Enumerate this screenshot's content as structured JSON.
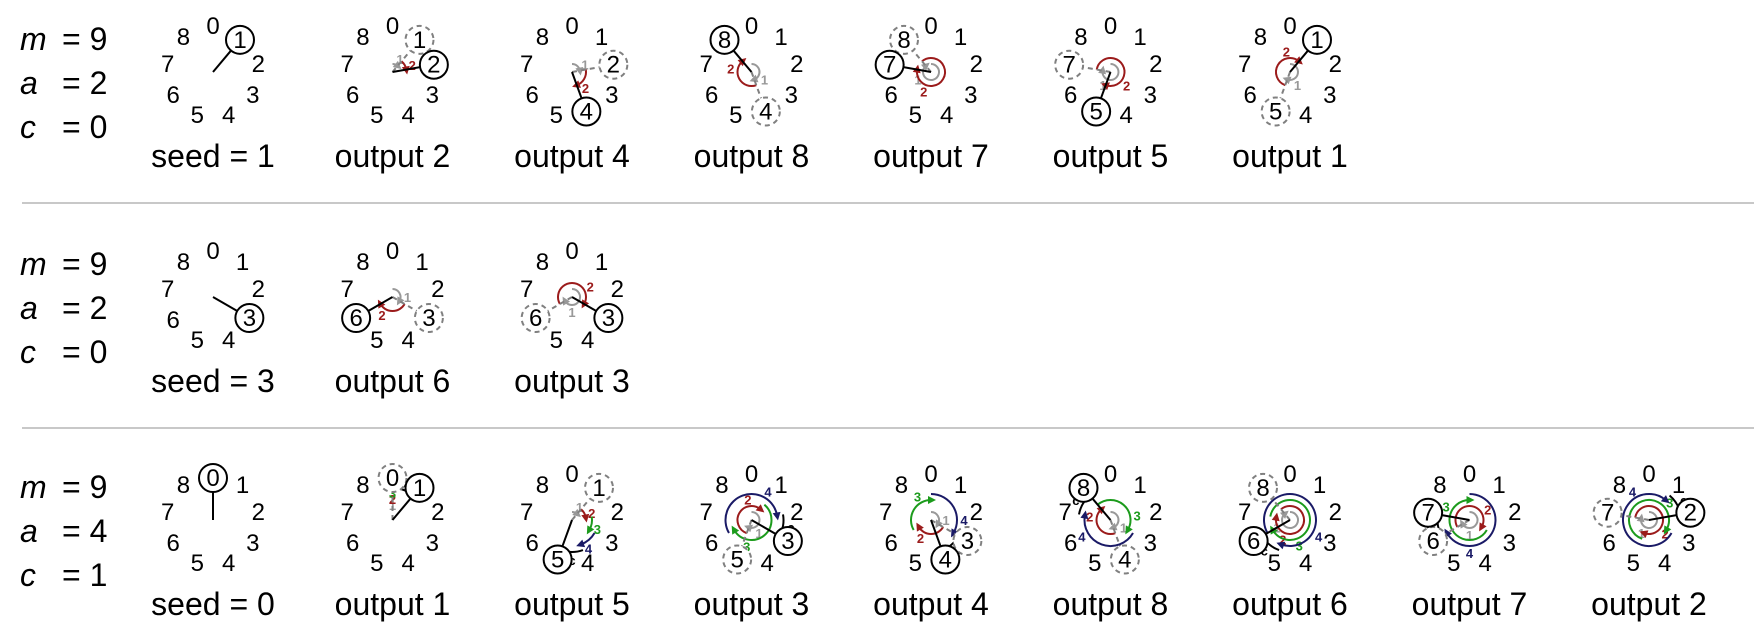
{
  "clock_numbers": [
    "0",
    "1",
    "2",
    "3",
    "4",
    "5",
    "6",
    "7",
    "8"
  ],
  "colors": {
    "hand": "#000000",
    "prev_hand": "#808080",
    "step_1": "#999999",
    "step_2": "#9b1b1b",
    "step_3": "#1c9b1c",
    "step_4": "#1a1a66",
    "step_c": "#000000",
    "separator": "#c8c8c8"
  },
  "rows": [
    {
      "params": [
        {
          "name": "m",
          "eq": "= 9"
        },
        {
          "name": "a",
          "eq": "= 2"
        },
        {
          "name": "c",
          "eq": "= 0"
        }
      ],
      "m": 9,
      "a": 2,
      "c": 0,
      "clocks": [
        {
          "caption": "seed = 1",
          "value": 1,
          "prev": null
        },
        {
          "caption": "output 2",
          "value": 2,
          "prev": 1
        },
        {
          "caption": "output 4",
          "value": 4,
          "prev": 2
        },
        {
          "caption": "output 8",
          "value": 8,
          "prev": 4
        },
        {
          "caption": "output 7",
          "value": 7,
          "prev": 8
        },
        {
          "caption": "output 5",
          "value": 5,
          "prev": 7
        },
        {
          "caption": "output 1",
          "value": 1,
          "prev": 5
        }
      ]
    },
    {
      "params": [
        {
          "name": "m",
          "eq": "= 9"
        },
        {
          "name": "a",
          "eq": "= 2"
        },
        {
          "name": "c",
          "eq": "= 0"
        }
      ],
      "m": 9,
      "a": 2,
      "c": 0,
      "clocks": [
        {
          "caption": "seed = 3",
          "value": 3,
          "prev": null
        },
        {
          "caption": "output 6",
          "value": 6,
          "prev": 3
        },
        {
          "caption": "output 3",
          "value": 3,
          "prev": 6
        }
      ]
    },
    {
      "params": [
        {
          "name": "m",
          "eq": "= 9"
        },
        {
          "name": "a",
          "eq": "= 4"
        },
        {
          "name": "c",
          "eq": "= 1"
        }
      ],
      "m": 9,
      "a": 4,
      "c": 1,
      "clocks": [
        {
          "caption": "seed = 0",
          "value": 0,
          "prev": null
        },
        {
          "caption": "output 1",
          "value": 1,
          "prev": 0
        },
        {
          "caption": "output 5",
          "value": 5,
          "prev": 1
        },
        {
          "caption": "output 3",
          "value": 3,
          "prev": 5
        },
        {
          "caption": "output 4",
          "value": 4,
          "prev": 3
        },
        {
          "caption": "output 8",
          "value": 8,
          "prev": 4
        },
        {
          "caption": "output 6",
          "value": 6,
          "prev": 8
        },
        {
          "caption": "output 7",
          "value": 7,
          "prev": 6
        },
        {
          "caption": "output 2",
          "value": 2,
          "prev": 7
        }
      ]
    }
  ]
}
